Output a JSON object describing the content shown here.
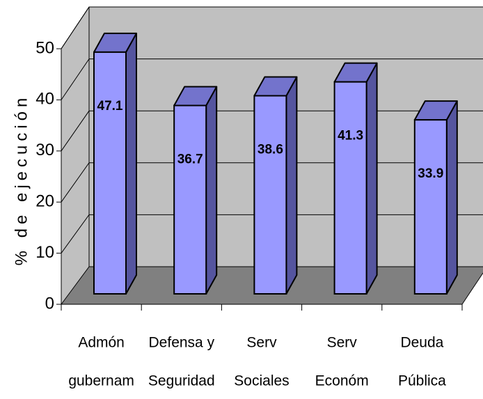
{
  "chart_data": {
    "type": "bar",
    "y_label": "% de ejecución",
    "categories": [
      [
        "Admón",
        "gubernam"
      ],
      [
        "Defensa y",
        "Seguridad"
      ],
      [
        "Serv",
        "Sociales"
      ],
      [
        "Serv",
        "Económ"
      ],
      [
        "Deuda",
        "Pública"
      ]
    ],
    "values": [
      47.1,
      36.7,
      38.6,
      41.3,
      33.9
    ],
    "color": "#9999ff",
    "ylim": [
      0,
      50
    ],
    "yticks": [
      0,
      10,
      20,
      30,
      40,
      50
    ],
    "grid": true
  }
}
